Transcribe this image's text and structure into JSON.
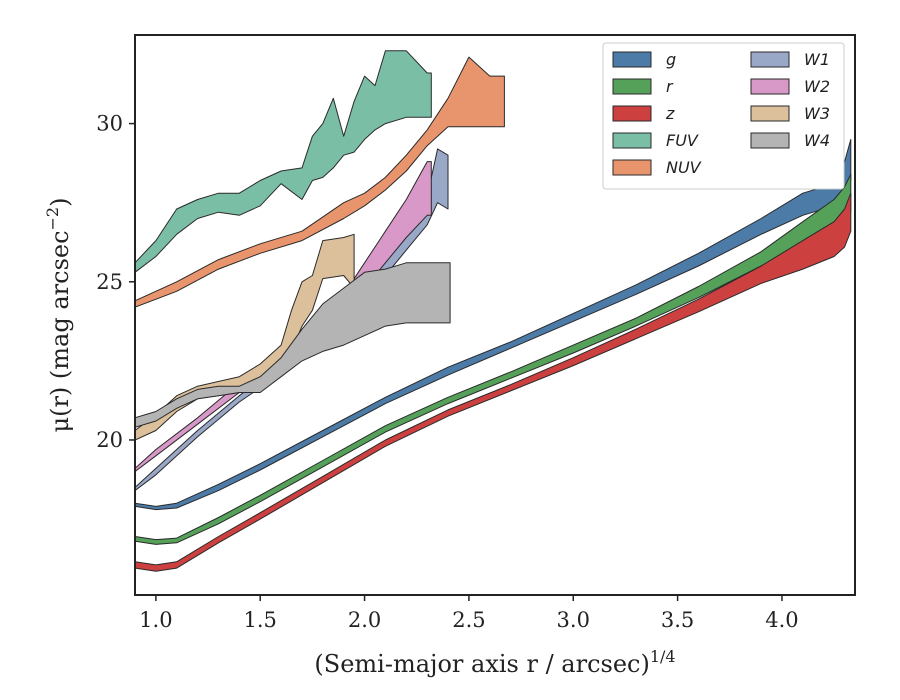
{
  "chart_data": {
    "type": "area",
    "title": "",
    "xlabel": "(Semi-major axis r / arcsec)",
    "xlabel_sup": "1/4",
    "ylabel": "μ(r) (mag arcsec",
    "ylabel_sup": "−2",
    "ylabel_tail": ")",
    "xlim": [
      0.9,
      4.35
    ],
    "ylim": [
      32.8,
      15.1
    ],
    "y_inverted": true,
    "xticks": [
      1.0,
      1.5,
      2.0,
      2.5,
      3.0,
      3.5,
      4.0
    ],
    "xtick_labels": [
      "1.0",
      "1.5",
      "2.0",
      "2.5",
      "3.0",
      "3.5",
      "4.0"
    ],
    "yticks": [
      20,
      25,
      30
    ],
    "ytick_labels": [
      "20",
      "25",
      "30"
    ],
    "grid": false,
    "legend_position": "top-right",
    "legend_columns": 2,
    "series": [
      {
        "name": "g",
        "color": "#4c7ba8",
        "x": [
          0.9,
          1.0,
          1.1,
          1.3,
          1.5,
          1.8,
          2.1,
          2.4,
          2.7,
          3.0,
          3.3,
          3.6,
          3.9,
          4.1,
          4.25,
          4.3,
          4.33
        ],
        "top": [
          17.9,
          17.8,
          17.85,
          18.4,
          19.05,
          20.1,
          21.15,
          22.05,
          22.9,
          23.75,
          24.6,
          25.5,
          26.5,
          27.1,
          27.4,
          27.8,
          28.2
        ],
        "bottom": [
          18.0,
          17.9,
          18.0,
          18.6,
          19.25,
          20.3,
          21.35,
          22.3,
          23.1,
          24.0,
          24.9,
          25.9,
          27.0,
          27.8,
          28.1,
          28.8,
          29.5
        ]
      },
      {
        "name": "r",
        "color": "#55a15a",
        "x": [
          0.9,
          1.0,
          1.1,
          1.3,
          1.5,
          1.8,
          2.1,
          2.4,
          2.7,
          3.0,
          3.3,
          3.6,
          3.9,
          4.1,
          4.25,
          4.3,
          4.33
        ],
        "top": [
          16.8,
          16.7,
          16.75,
          17.35,
          18.05,
          19.15,
          20.25,
          21.15,
          21.95,
          22.75,
          23.6,
          24.5,
          25.5,
          26.1,
          26.5,
          26.8,
          27.2
        ],
        "bottom": [
          16.95,
          16.85,
          16.9,
          17.55,
          18.25,
          19.35,
          20.45,
          21.35,
          22.15,
          23.0,
          23.85,
          24.85,
          25.95,
          26.9,
          27.6,
          28.0,
          28.4
        ]
      },
      {
        "name": "z",
        "color": "#cc4040",
        "x": [
          0.9,
          1.0,
          1.1,
          1.3,
          1.5,
          1.8,
          2.1,
          2.4,
          2.7,
          3.0,
          3.3,
          3.6,
          3.9,
          4.1,
          4.25,
          4.3,
          4.33
        ],
        "top": [
          15.95,
          15.85,
          15.95,
          16.75,
          17.5,
          18.65,
          19.8,
          20.75,
          21.55,
          22.35,
          23.2,
          24.05,
          24.95,
          25.4,
          25.8,
          26.1,
          26.6
        ],
        "bottom": [
          16.15,
          16.05,
          16.15,
          16.95,
          17.7,
          18.85,
          20.0,
          20.95,
          21.75,
          22.6,
          23.5,
          24.45,
          25.5,
          26.3,
          26.9,
          27.3,
          27.8
        ]
      },
      {
        "name": "FUV",
        "color": "#7abea6",
        "x": [
          0.9,
          1.0,
          1.1,
          1.2,
          1.3,
          1.4,
          1.5,
          1.6,
          1.7,
          1.75,
          1.8,
          1.85,
          1.9,
          1.95,
          2.0,
          2.05,
          2.1,
          2.2,
          2.3,
          2.32
        ],
        "top": [
          25.3,
          25.8,
          26.5,
          27.0,
          27.2,
          27.1,
          27.4,
          28.1,
          27.6,
          28.2,
          28.3,
          28.6,
          29.0,
          29.1,
          29.5,
          29.8,
          30.0,
          30.2,
          30.2,
          30.2
        ],
        "bottom": [
          25.6,
          26.3,
          27.3,
          27.6,
          27.8,
          27.8,
          28.2,
          28.5,
          28.6,
          29.6,
          30.0,
          30.8,
          29.6,
          30.7,
          31.5,
          31.2,
          32.3,
          32.3,
          31.6,
          31.6
        ]
      },
      {
        "name": "NUV",
        "color": "#e8956e",
        "x": [
          0.9,
          1.1,
          1.3,
          1.5,
          1.7,
          1.9,
          2.0,
          2.1,
          2.2,
          2.3,
          2.4,
          2.5,
          2.6,
          2.67
        ],
        "top": [
          24.2,
          24.7,
          25.4,
          25.9,
          26.3,
          27.0,
          27.4,
          27.9,
          28.5,
          29.3,
          29.9,
          29.9,
          29.9,
          29.9
        ],
        "bottom": [
          24.4,
          25.0,
          25.7,
          26.2,
          26.6,
          27.5,
          27.8,
          28.3,
          29.0,
          29.8,
          30.8,
          32.1,
          31.5,
          31.5
        ]
      },
      {
        "name": "W1",
        "color": "#9aa8c8",
        "x": [
          0.9,
          1.0,
          1.2,
          1.4,
          1.6,
          1.8,
          1.9,
          2.0,
          2.1,
          2.2,
          2.3,
          2.35,
          2.4
        ],
        "top": [
          18.4,
          18.9,
          20.1,
          21.2,
          22.1,
          23.0,
          23.6,
          24.5,
          25.2,
          26.0,
          26.8,
          27.5,
          27.3
        ],
        "bottom": [
          18.5,
          19.1,
          20.3,
          21.4,
          22.4,
          23.6,
          24.2,
          25.2,
          26.0,
          26.8,
          27.7,
          29.2,
          29.0
        ]
      },
      {
        "name": "W2",
        "color": "#d898c8",
        "x": [
          0.9,
          1.0,
          1.2,
          1.4,
          1.6,
          1.8,
          1.9,
          2.0,
          2.1,
          2.2,
          2.3,
          2.32
        ],
        "top": [
          19.0,
          19.5,
          20.5,
          21.5,
          22.4,
          23.4,
          24.0,
          24.8,
          25.6,
          26.4,
          27.1,
          27.1
        ],
        "bottom": [
          19.1,
          19.7,
          20.7,
          21.8,
          22.8,
          24.0,
          24.6,
          25.6,
          26.6,
          27.6,
          28.8,
          28.8
        ]
      },
      {
        "name": "W3",
        "color": "#dcc09c",
        "x": [
          0.9,
          1.0,
          1.1,
          1.2,
          1.4,
          1.5,
          1.6,
          1.65,
          1.7,
          1.75,
          1.8,
          1.9,
          1.95
        ],
        "top": [
          20.0,
          20.3,
          20.9,
          21.3,
          21.5,
          21.8,
          22.2,
          22.8,
          23.6,
          24.1,
          25.1,
          25.2,
          24.8
        ],
        "bottom": [
          20.3,
          20.8,
          21.4,
          21.7,
          22.0,
          22.4,
          23.0,
          24.1,
          25.0,
          25.2,
          26.3,
          26.4,
          26.5
        ]
      },
      {
        "name": "W4",
        "color": "#b4b4b4",
        "x": [
          0.9,
          1.0,
          1.1,
          1.2,
          1.3,
          1.4,
          1.5,
          1.6,
          1.7,
          1.8,
          1.9,
          2.0,
          2.1,
          2.2,
          2.3,
          2.41
        ],
        "top": [
          20.4,
          20.6,
          21.0,
          21.3,
          21.4,
          21.5,
          21.5,
          22.0,
          22.5,
          22.8,
          23.0,
          23.3,
          23.6,
          23.7,
          23.7,
          23.7
        ],
        "bottom": [
          20.7,
          20.9,
          21.3,
          21.6,
          21.7,
          21.7,
          22.0,
          22.6,
          23.5,
          24.3,
          24.8,
          25.3,
          25.4,
          25.6,
          25.6,
          25.6
        ]
      }
    ]
  }
}
